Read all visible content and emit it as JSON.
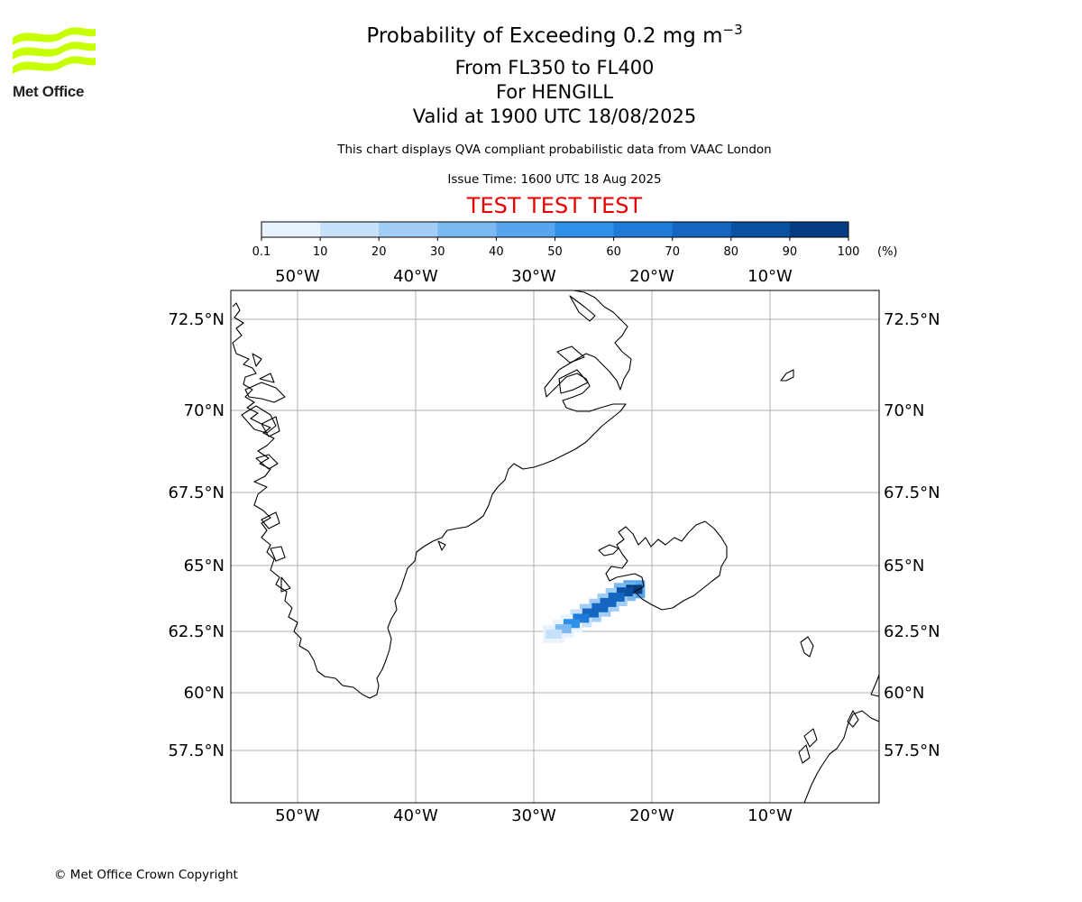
{
  "header": {
    "logo_text": "Met Office",
    "title_main": "Probability of Exceeding 0.2 mg m",
    "title_exp": "−3",
    "flight_levels": "From FL350 to FL400",
    "volcano": "For HENGILL",
    "valid": "Valid at 1900 UTC 18/08/2025",
    "note": "This chart displays QVA compliant probabilistic data from VAAC London",
    "issue": "Issue Time: 1600 UTC 18 Aug 2025",
    "test_banner": "TEST TEST TEST"
  },
  "colorbar": {
    "ticks": [
      "0.1",
      "10",
      "20",
      "30",
      "40",
      "50",
      "60",
      "70",
      "80",
      "90",
      "100"
    ],
    "unit": "(%)",
    "colors": [
      "#e9f3fd",
      "#c6e1f9",
      "#a2cdf5",
      "#7cb9f1",
      "#56a5ed",
      "#2e90e6",
      "#1f7bd7",
      "#1466c0",
      "#0b51a2",
      "#063d82",
      "#04294f"
    ]
  },
  "map": {
    "lon_labels": [
      "50°W",
      "40°W",
      "30°W",
      "20°W",
      "10°W"
    ],
    "lat_labels": [
      "72.5°N",
      "70°N",
      "67.5°N",
      "65°N",
      "62.5°N",
      "60°N",
      "57.5°N"
    ],
    "grid": true,
    "plume_cells": [
      {
        "lon": -21.5,
        "lat": 64.1,
        "pct": 95
      },
      {
        "lon": -22.3,
        "lat": 64.0,
        "pct": 85
      },
      {
        "lon": -23.0,
        "lat": 63.8,
        "pct": 75
      },
      {
        "lon": -23.7,
        "lat": 63.6,
        "pct": 70
      },
      {
        "lon": -24.4,
        "lat": 63.4,
        "pct": 70
      },
      {
        "lon": -25.2,
        "lat": 63.2,
        "pct": 75
      },
      {
        "lon": -26.0,
        "lat": 63.0,
        "pct": 65
      },
      {
        "lon": -26.8,
        "lat": 62.8,
        "pct": 55
      },
      {
        "lon": -27.5,
        "lat": 62.6,
        "pct": 35
      },
      {
        "lon": -28.3,
        "lat": 62.4,
        "pct": 15
      }
    ]
  },
  "footer": {
    "copyright": "© Met Office Crown Copyright"
  }
}
